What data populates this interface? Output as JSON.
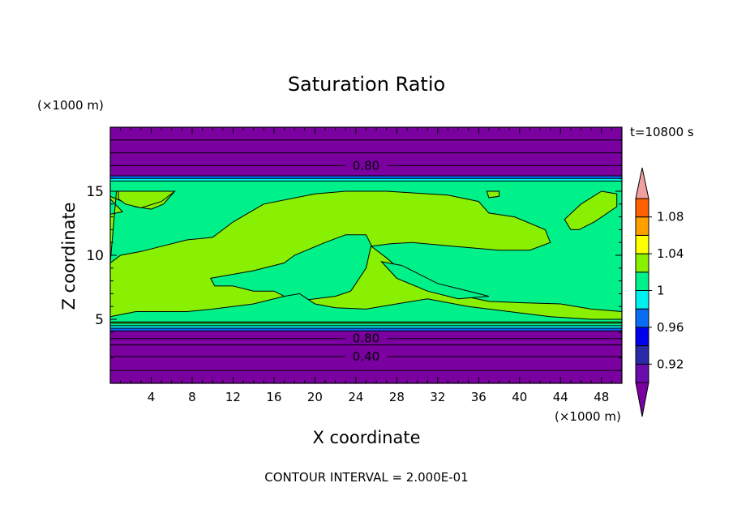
{
  "chart_data": {
    "type": "heatmap",
    "title": "Saturation Ratio",
    "xlabel": "X coordinate",
    "ylabel": "Z coordinate",
    "x_unit": "(×1000 m)",
    "y_unit": "(×1000 m)",
    "time_label": "t=10800 s",
    "footer": "CONTOUR INTERVAL = 2.000E-01",
    "xlim": [
      0,
      50
    ],
    "ylim": [
      0,
      20
    ],
    "x_ticks": [
      4,
      8,
      12,
      16,
      20,
      24,
      28,
      32,
      36,
      40,
      44,
      48
    ],
    "y_ticks": [
      5,
      10,
      15
    ],
    "colorbar": {
      "levels": [
        0.9,
        0.92,
        0.94,
        0.96,
        0.98,
        1.0,
        1.02,
        1.04,
        1.06,
        1.08,
        1.1
      ],
      "tick_values": [
        0.92,
        0.96,
        1.0,
        1.04,
        1.08
      ],
      "tick_labels": [
        "0.92",
        "0.96",
        "1",
        "1.04",
        "1.08"
      ],
      "colors": [
        "#6a0dad",
        "#2a2aa8",
        "#0000ee",
        "#0a6cf5",
        "#00f0f0",
        "#00f08a",
        "#88f000",
        "#ffff00",
        "#ffa000",
        "#ff6000",
        "#ff2020"
      ],
      "under_color": "#7a00a0",
      "over_color": "#f0a0a0"
    },
    "bands": [
      {
        "z": [
          16.2,
          20.0
        ],
        "value": 0.7,
        "color": "#7a00a0"
      },
      {
        "z": [
          16.0,
          16.2
        ],
        "value": 0.95,
        "color": "#0a6cf5"
      },
      {
        "z": [
          15.8,
          16.0
        ],
        "value": 0.97,
        "color": "#00f0f0"
      },
      {
        "z": [
          4.5,
          15.8
        ],
        "value": 0.99,
        "color": "#00f08a"
      },
      {
        "z": [
          4.3,
          4.5
        ],
        "value": 0.97,
        "color": "#00f0f0"
      },
      {
        "z": [
          4.1,
          4.3
        ],
        "value": 0.95,
        "color": "#0a6cf5"
      },
      {
        "z": [
          0.0,
          4.1
        ],
        "value": 0.6,
        "color": "#7a00a0"
      }
    ],
    "contour_lines": [
      {
        "z": 19.0
      },
      {
        "z": 18.0
      },
      {
        "z": 17.0,
        "label": "0.80"
      },
      {
        "z": 3.5,
        "label": "0.80"
      },
      {
        "z": 3.0
      },
      {
        "z": 2.1,
        "label": "0.40"
      },
      {
        "z": 1.0
      }
    ],
    "regions_value_1_to_1_02": [
      {
        "name": "upper-plume",
        "points": [
          [
            0.6,
            15
          ],
          [
            6.3,
            15
          ],
          [
            5.2,
            14
          ],
          [
            4,
            13.6
          ],
          [
            2.4,
            13.8
          ],
          [
            0.6,
            14.4
          ],
          [
            0,
            14.6
          ],
          [
            0,
            14.4
          ],
          [
            1.2,
            13.4
          ],
          [
            0,
            13.2
          ],
          [
            0,
            4.7
          ],
          [
            50,
            4.7
          ],
          [
            50,
            5.6
          ],
          [
            47,
            5.8
          ],
          [
            44,
            6.2
          ],
          [
            40,
            6.3
          ],
          [
            37,
            6.4
          ],
          [
            34,
            6.9
          ],
          [
            31,
            7.6
          ],
          [
            29,
            8.4
          ],
          [
            27,
            9.8
          ],
          [
            25.5,
            10.7
          ],
          [
            27.4,
            10.9
          ],
          [
            29.5,
            11.0
          ],
          [
            33.5,
            10.7
          ],
          [
            38,
            10.4
          ],
          [
            41,
            10.4
          ],
          [
            43,
            11.0
          ],
          [
            42.5,
            12.0
          ],
          [
            39.5,
            13.0
          ],
          [
            37,
            13.3
          ],
          [
            36,
            14.2
          ],
          [
            33,
            14.7
          ],
          [
            27,
            15
          ],
          [
            23,
            15
          ],
          [
            20,
            14.8
          ],
          [
            15,
            14
          ],
          [
            12,
            12.6
          ],
          [
            10,
            11.4
          ],
          [
            7.5,
            11.2
          ],
          [
            3,
            10.3
          ],
          [
            1,
            10.0
          ],
          [
            0,
            9.4
          ]
        ]
      },
      {
        "name": "right-cell",
        "points": [
          [
            44.4,
            12.8
          ],
          [
            46,
            14
          ],
          [
            48,
            15
          ],
          [
            49.5,
            14.8
          ],
          [
            49.5,
            13.8
          ],
          [
            47.3,
            12.6
          ],
          [
            45.8,
            12.0
          ],
          [
            45,
            12.0
          ]
        ]
      },
      {
        "name": "top-left-blob",
        "points": [
          [
            0.8,
            15
          ],
          [
            6.3,
            15
          ],
          [
            5,
            14.2
          ],
          [
            3,
            13.7
          ],
          [
            1.5,
            14
          ],
          [
            0.8,
            14.4
          ]
        ]
      },
      {
        "name": "small-top-cell",
        "points": [
          [
            36.8,
            15
          ],
          [
            38,
            15
          ],
          [
            38,
            14.6
          ],
          [
            37,
            14.5
          ]
        ]
      }
    ],
    "regions_value_0_98_to_1": [
      {
        "name": "inner-pocket-left",
        "points": [
          [
            9.8,
            8.2
          ],
          [
            14,
            8.8
          ],
          [
            17,
            9.4
          ],
          [
            18,
            10.0
          ],
          [
            21,
            11.0
          ],
          [
            23,
            11.6
          ],
          [
            25,
            11.6
          ],
          [
            25.5,
            10.8
          ],
          [
            25,
            9.0
          ],
          [
            23.5,
            7.2
          ],
          [
            22,
            6.8
          ],
          [
            20,
            6.6
          ],
          [
            18,
            6.4
          ],
          [
            16,
            7.2
          ],
          [
            14,
            7.2
          ],
          [
            12,
            7.6
          ],
          [
            10.2,
            7.6
          ]
        ]
      },
      {
        "name": "inner-pocket-right",
        "points": [
          [
            26.5,
            9.5
          ],
          [
            28.5,
            9.2
          ],
          [
            30.5,
            8.4
          ],
          [
            32,
            7.8
          ],
          [
            34,
            7.4
          ],
          [
            36,
            7.0
          ],
          [
            37,
            6.8
          ],
          [
            34,
            6.6
          ],
          [
            31,
            7.2
          ],
          [
            28,
            8.2
          ]
        ]
      },
      {
        "name": "lower-strip",
        "points": [
          [
            2.5,
            5.6
          ],
          [
            7.5,
            5.6
          ],
          [
            10,
            5.8
          ],
          [
            14,
            6.2
          ],
          [
            17,
            6.8
          ],
          [
            18.5,
            7.0
          ],
          [
            20,
            6.2
          ],
          [
            22,
            5.9
          ],
          [
            25,
            5.8
          ],
          [
            28,
            6.2
          ],
          [
            31,
            6.6
          ],
          [
            35,
            6.0
          ],
          [
            39,
            5.6
          ],
          [
            43,
            5.2
          ],
          [
            47,
            5.0
          ],
          [
            50,
            5.0
          ],
          [
            50,
            4.8
          ],
          [
            0,
            4.8
          ],
          [
            0,
            5.2
          ]
        ]
      }
    ]
  }
}
